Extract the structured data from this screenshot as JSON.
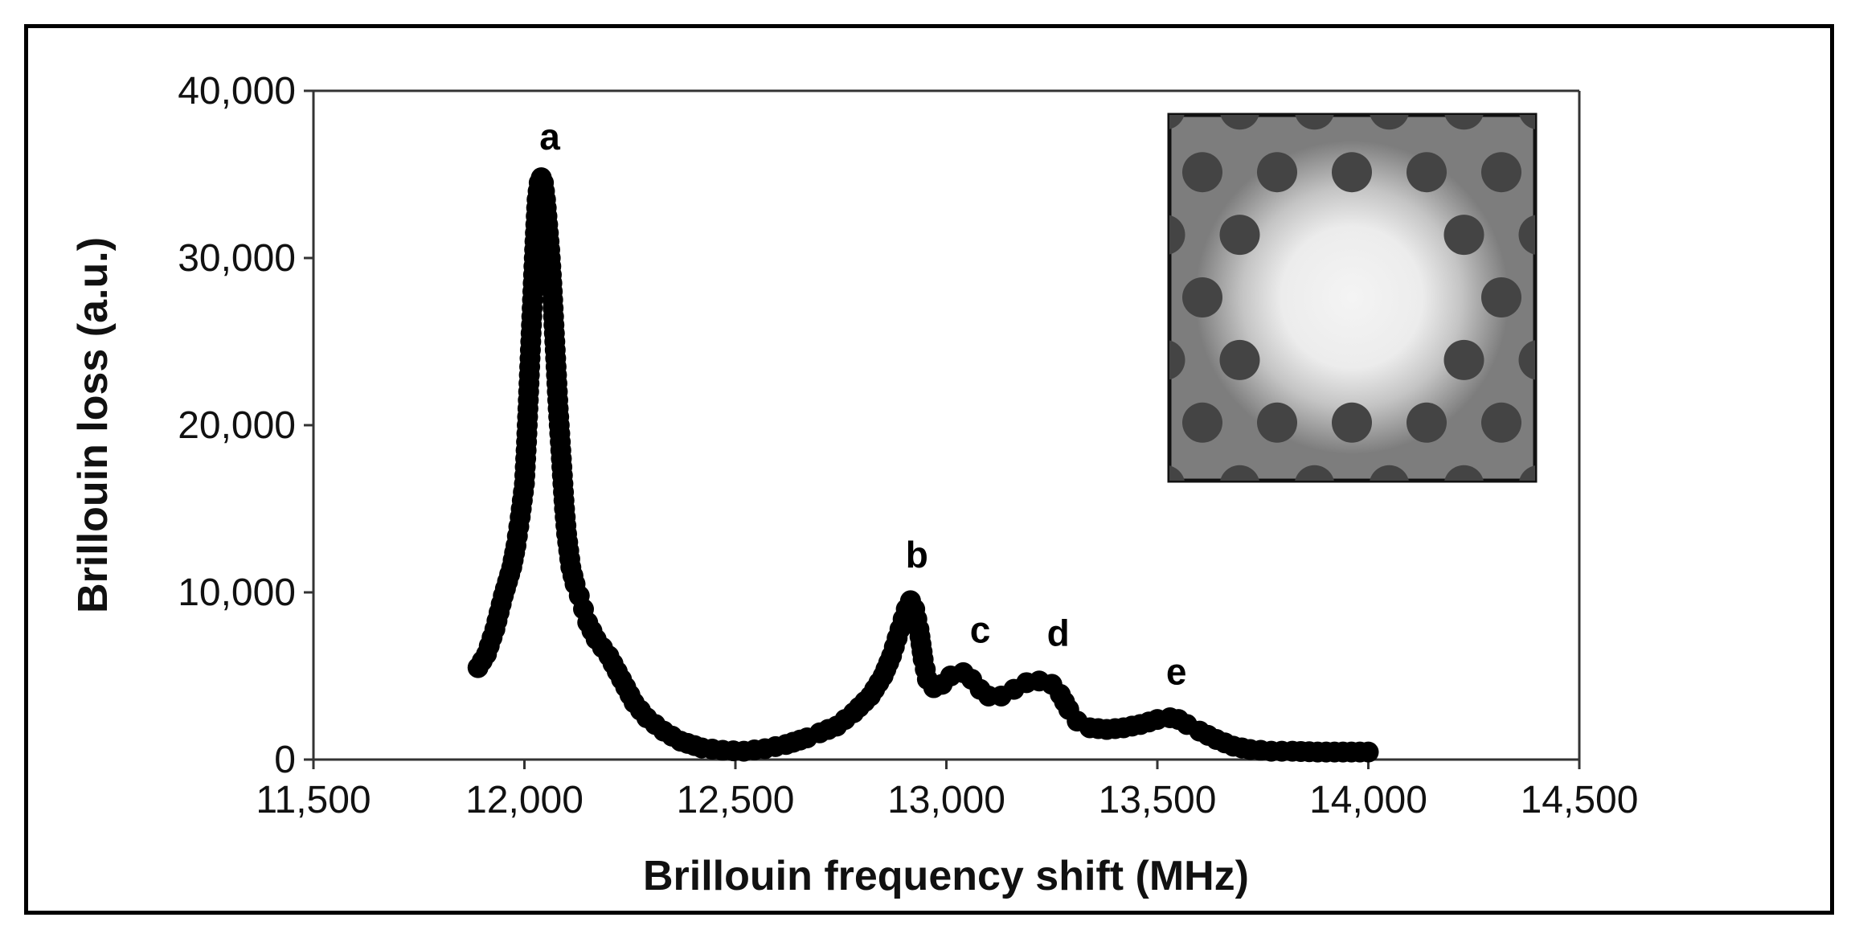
{
  "chart_data": {
    "type": "scatter",
    "title": "",
    "xlabel": "Brillouin frequency shift (MHz)",
    "ylabel": "Brillouin loss (a.u.)",
    "xlim": [
      11500,
      14500
    ],
    "ylim": [
      0,
      40000
    ],
    "x_ticks": [
      "11,500",
      "12,000",
      "12,500",
      "13,000",
      "13,500",
      "14,000",
      "14,500"
    ],
    "y_ticks": [
      "0",
      "10,000",
      "20,000",
      "30,000",
      "40,000"
    ],
    "grid": false,
    "legend": "none",
    "marker_color": "#000000",
    "series": [
      {
        "x": [
          11890,
          11910,
          11930,
          11950,
          11970,
          11980,
          11990,
          12000,
          12005,
          12010,
          12015,
          12020,
          12025,
          12030,
          12035,
          12040,
          12045,
          12050,
          12055,
          12060,
          12065,
          12070,
          12075,
          12080,
          12085,
          12090,
          12095,
          12100,
          12105,
          12110,
          12115,
          12120,
          12130,
          12140,
          12150,
          12170,
          12200,
          12230,
          12260,
          12290,
          12330,
          12370,
          12420,
          12470,
          12520,
          12570,
          12620,
          12670,
          12700,
          12740,
          12780,
          12820,
          12850,
          12870,
          12890,
          12905,
          12915,
          12925,
          12935,
          12945,
          12955,
          12970,
          12990,
          13010,
          13040,
          13060,
          13080,
          13100,
          13130,
          13160,
          13190,
          13220,
          13250,
          13270,
          13290,
          13310,
          13340,
          13380,
          13420,
          13460,
          13500,
          13530,
          13550,
          13570,
          13600,
          13640,
          13680,
          13720,
          13770,
          13820,
          13880,
          13940,
          14000
        ],
        "y": [
          5500,
          6300,
          7800,
          9800,
          11500,
          12800,
          14500,
          16500,
          19000,
          22000,
          25000,
          28000,
          31000,
          33500,
          34500,
          34800,
          34500,
          33500,
          32000,
          30500,
          28500,
          26000,
          23500,
          21000,
          19000,
          17000,
          15000,
          13500,
          12500,
          11500,
          11000,
          10500,
          9800,
          9000,
          8200,
          7200,
          6200,
          4800,
          3400,
          2500,
          1700,
          1100,
          700,
          550,
          500,
          650,
          900,
          1300,
          1600,
          2000,
          2800,
          3800,
          5000,
          6200,
          7800,
          9000,
          9500,
          9000,
          7800,
          6000,
          4800,
          4300,
          4500,
          5000,
          5200,
          4800,
          4200,
          3800,
          3800,
          4200,
          4600,
          4700,
          4500,
          3900,
          3000,
          2300,
          1900,
          1800,
          1900,
          2100,
          2400,
          2500,
          2400,
          2100,
          1700,
          1200,
          800,
          600,
          500,
          500,
          450,
          450,
          450
        ]
      }
    ],
    "annotations": [
      {
        "text": "a",
        "x": 12060,
        "y": 36500
      },
      {
        "text": "b",
        "x": 12930,
        "y": 11500
      },
      {
        "text": "c",
        "x": 13080,
        "y": 7000
      },
      {
        "text": "d",
        "x": 13265,
        "y": 6800
      },
      {
        "text": "e",
        "x": 13545,
        "y": 4500
      }
    ]
  },
  "inset": {
    "description_icon": "photonic-crystal-fiber-image",
    "background_color": "#7d7d7d",
    "hole_color": "#444444",
    "core_color": "#f0f0f0"
  }
}
